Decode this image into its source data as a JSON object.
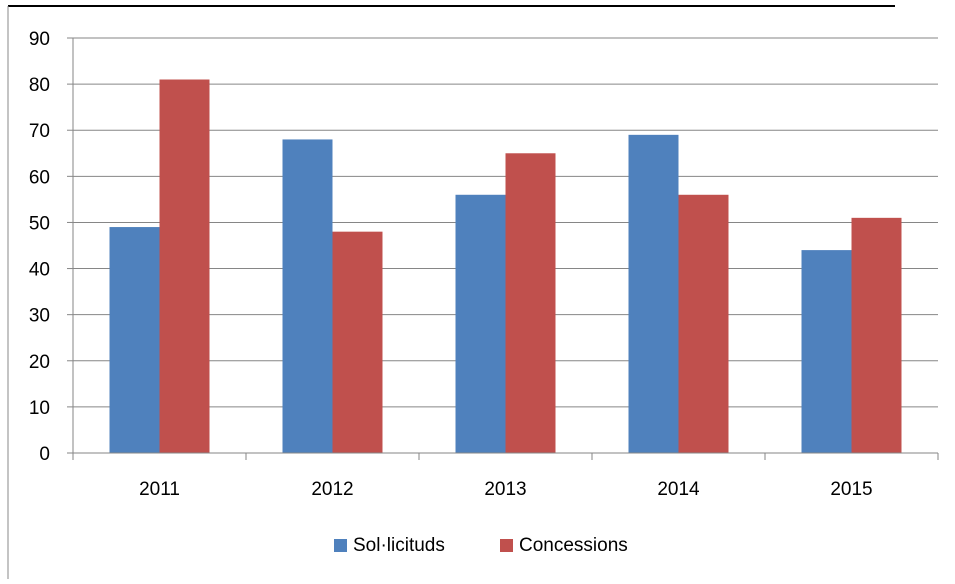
{
  "chart_data": {
    "type": "bar",
    "title": "",
    "xlabel": "",
    "ylabel": "",
    "categories": [
      "2011",
      "2012",
      "2013",
      "2014",
      "2015"
    ],
    "series": [
      {
        "name": "Sol·licituds",
        "color": "#4F81BD",
        "values": [
          49,
          68,
          56,
          69,
          44
        ]
      },
      {
        "name": "Concessions",
        "color": "#C0504D",
        "values": [
          81,
          48,
          65,
          56,
          51
        ]
      }
    ],
    "ylim": [
      0,
      90
    ],
    "yticks": [
      "0",
      "10",
      "20",
      "30",
      "40",
      "50",
      "60",
      "70",
      "80",
      "90"
    ],
    "grid": true,
    "legend_position": "bottom"
  }
}
